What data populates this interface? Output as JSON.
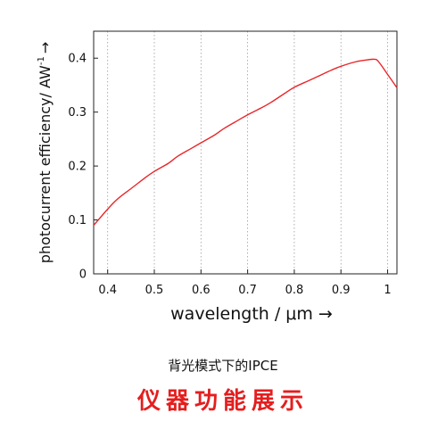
{
  "chart_data": {
    "type": "line",
    "xlabel": "wavelength / μm →",
    "ylabel_main": "photocurrent efficiency/ AW",
    "ylabel_sup": "-1",
    "ylabel_arrow": "→",
    "xlim": [
      0.37,
      1.02
    ],
    "ylim": [
      0,
      0.45
    ],
    "x_ticks": [
      0.4,
      0.5,
      0.6,
      0.7,
      0.8,
      0.9,
      1.0
    ],
    "x_tick_labels": [
      "0.4",
      "0.5",
      "0.6",
      "0.7",
      "0.8",
      "0.9",
      "1"
    ],
    "y_ticks": [
      0,
      0.1,
      0.2,
      0.3,
      0.4
    ],
    "y_tick_labels": [
      "0",
      "0.1",
      "0.2",
      "0.3",
      "0.4"
    ],
    "grid": "vertical dotted",
    "series_color": "#e8262a",
    "series": [
      {
        "x": [
          0.37,
          0.38,
          0.4,
          0.42,
          0.45,
          0.48,
          0.5,
          0.53,
          0.55,
          0.58,
          0.6,
          0.63,
          0.65,
          0.68,
          0.7,
          0.73,
          0.75,
          0.78,
          0.8,
          0.83,
          0.85,
          0.88,
          0.9,
          0.93,
          0.95,
          0.97,
          0.98,
          1.0,
          1.02
        ],
        "y": [
          0.09,
          0.1,
          0.12,
          0.138,
          0.158,
          0.178,
          0.19,
          0.205,
          0.218,
          0.233,
          0.243,
          0.258,
          0.27,
          0.285,
          0.295,
          0.308,
          0.318,
          0.335,
          0.346,
          0.358,
          0.366,
          0.378,
          0.385,
          0.393,
          0.396,
          0.398,
          0.394,
          0.37,
          0.345
        ]
      }
    ]
  },
  "captions": {
    "subtitle": "背光模式下的IPCE",
    "headline": "仪器功能展示"
  }
}
